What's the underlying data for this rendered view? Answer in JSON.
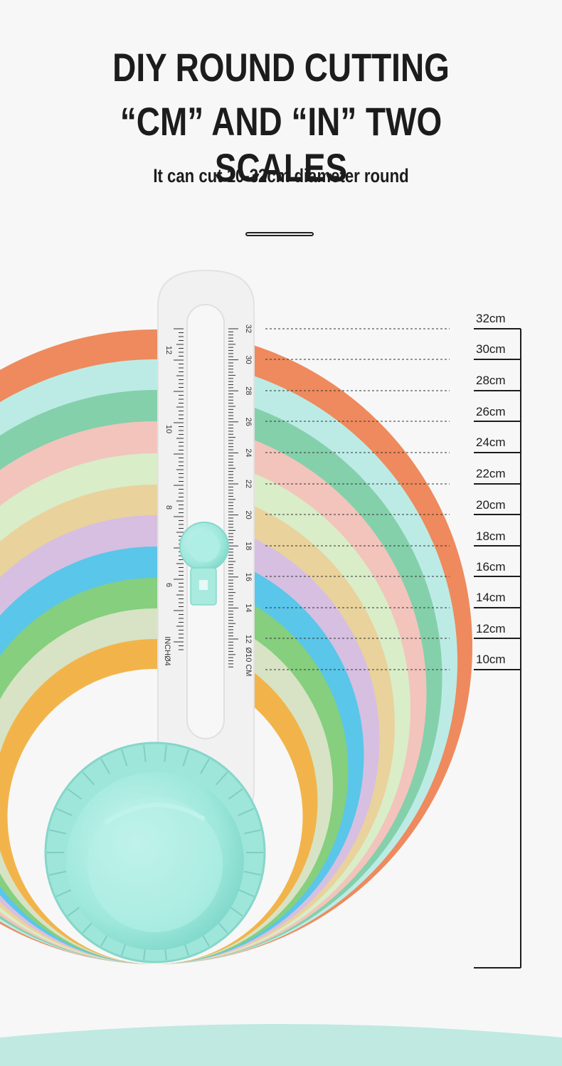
{
  "header": {
    "title_line1": "DIY ROUND CUTTING",
    "title_line2": "“CM” AND “IN” TWO SCALES",
    "subtitle": "It can cut 10-32cm diameter round"
  },
  "ruler": {
    "cm_scale_numbers": [
      "32",
      "30",
      "28",
      "26",
      "24",
      "22",
      "20",
      "18",
      "16",
      "14",
      "12"
    ],
    "cm_scale_caption": "Ø10 CM",
    "inch_scale_numbers": [
      "12",
      "10",
      "8",
      "6"
    ],
    "inch_scale_caption": "INCHØ4"
  },
  "diameter_scale": {
    "labels": [
      "32cm",
      "30cm",
      "28cm",
      "26cm",
      "24cm",
      "22cm",
      "20cm",
      "18cm",
      "16cm",
      "14cm",
      "12cm",
      "10cm"
    ]
  },
  "colors": {
    "rings": [
      "#ee8a5d",
      "#bcebe6",
      "#84d0ab",
      "#f2c4bc",
      "#d9edc8",
      "#e9d29c",
      "#d6bfe1",
      "#5ac6ea",
      "#85cf7e",
      "#d7e3c4",
      "#f2b44a"
    ],
    "knob": "#9fe8dc",
    "ruler_body": "#f3f3f3",
    "background": "#f7f7f7"
  }
}
